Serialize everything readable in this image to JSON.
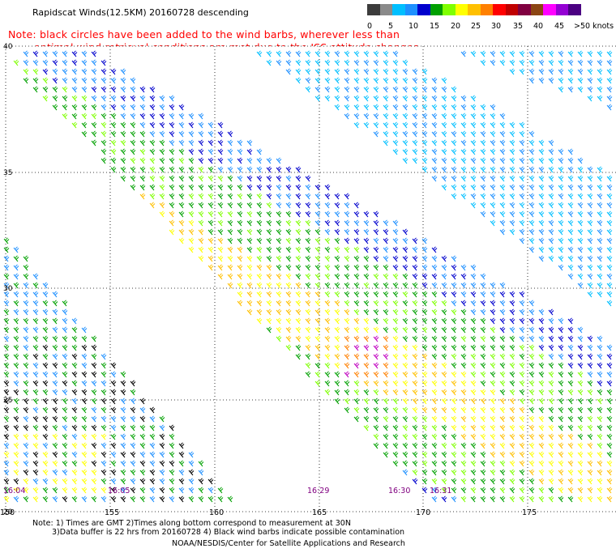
{
  "title": "Rapidscat Winds(12.5KM) 20160728 descending",
  "note_line1": "Note: black circles have been added to the wind barbs, wherever less than",
  "note_line2": "optimal wind retrieval conditions are met due to the ISS attitude changes.",
  "legend": {
    "colors": [
      "#3c3c3c",
      "#8a8a8a",
      "#00bfff",
      "#1e90ff",
      "#0000cd",
      "#00a000",
      "#7fff00",
      "#ffff00",
      "#ffc000",
      "#ff8000",
      "#ff0000",
      "#c00000",
      "#800040",
      "#8b4513",
      "#ff00ff",
      "#9400d3",
      "#4b0082"
    ],
    "labels": [
      "0",
      "5",
      "10",
      "15",
      "20",
      "25",
      "30",
      "35",
      "40",
      "45",
      ">50 knots"
    ]
  },
  "axes": {
    "lat_labels": [
      "40",
      "35",
      "30",
      "25",
      "20"
    ],
    "lon_labels": [
      "150",
      "155",
      "160",
      "165",
      "170",
      "175"
    ]
  },
  "times": [
    "16:04",
    "16:05",
    "16:29",
    "16:30",
    "16:31"
  ],
  "footer": {
    "line1": "Note: 1) Times are GMT 2)Times along bottom correspond to measurement at 30N",
    "line2": "3)Data buffer is 22 hrs from 20160728 4) Black wind barbs indicate possible contamination",
    "line3": "NOAA/NESDIS/Center for Satellite Applications and Research"
  }
}
